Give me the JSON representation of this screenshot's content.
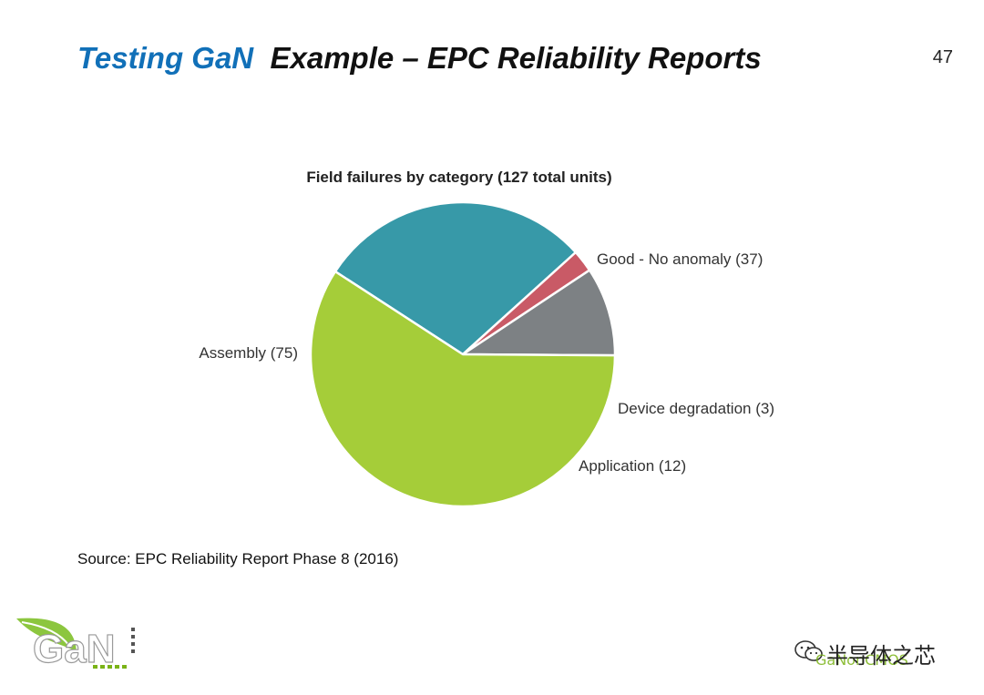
{
  "slide": {
    "title_accent": "Testing GaN",
    "title_main": "Example – EPC Reliability Reports",
    "page_number": "47",
    "source": "Source: EPC Reliability Report Phase 8 (2016)"
  },
  "chart_data": {
    "type": "pie",
    "title": "Field failures by category (127 total units)",
    "slices": [
      {
        "label": "Good - No anomaly (37)",
        "value": 37,
        "color": "#3799a8"
      },
      {
        "label": "Device degradation (3)",
        "value": 3,
        "color": "#c95a66"
      },
      {
        "label": "Application (12)",
        "value": 12,
        "color": "#7d8184"
      },
      {
        "label": "Assembly (75)",
        "value": 75,
        "color": "#a5cd39"
      }
    ],
    "legend": "none"
  },
  "logo": {
    "text": "GaN",
    "icon": "gan-leaf-logo"
  },
  "footer": {
    "watermark": "半导体之芯",
    "caption": "GaNonCMOS",
    "icon": "wechat-icon"
  }
}
